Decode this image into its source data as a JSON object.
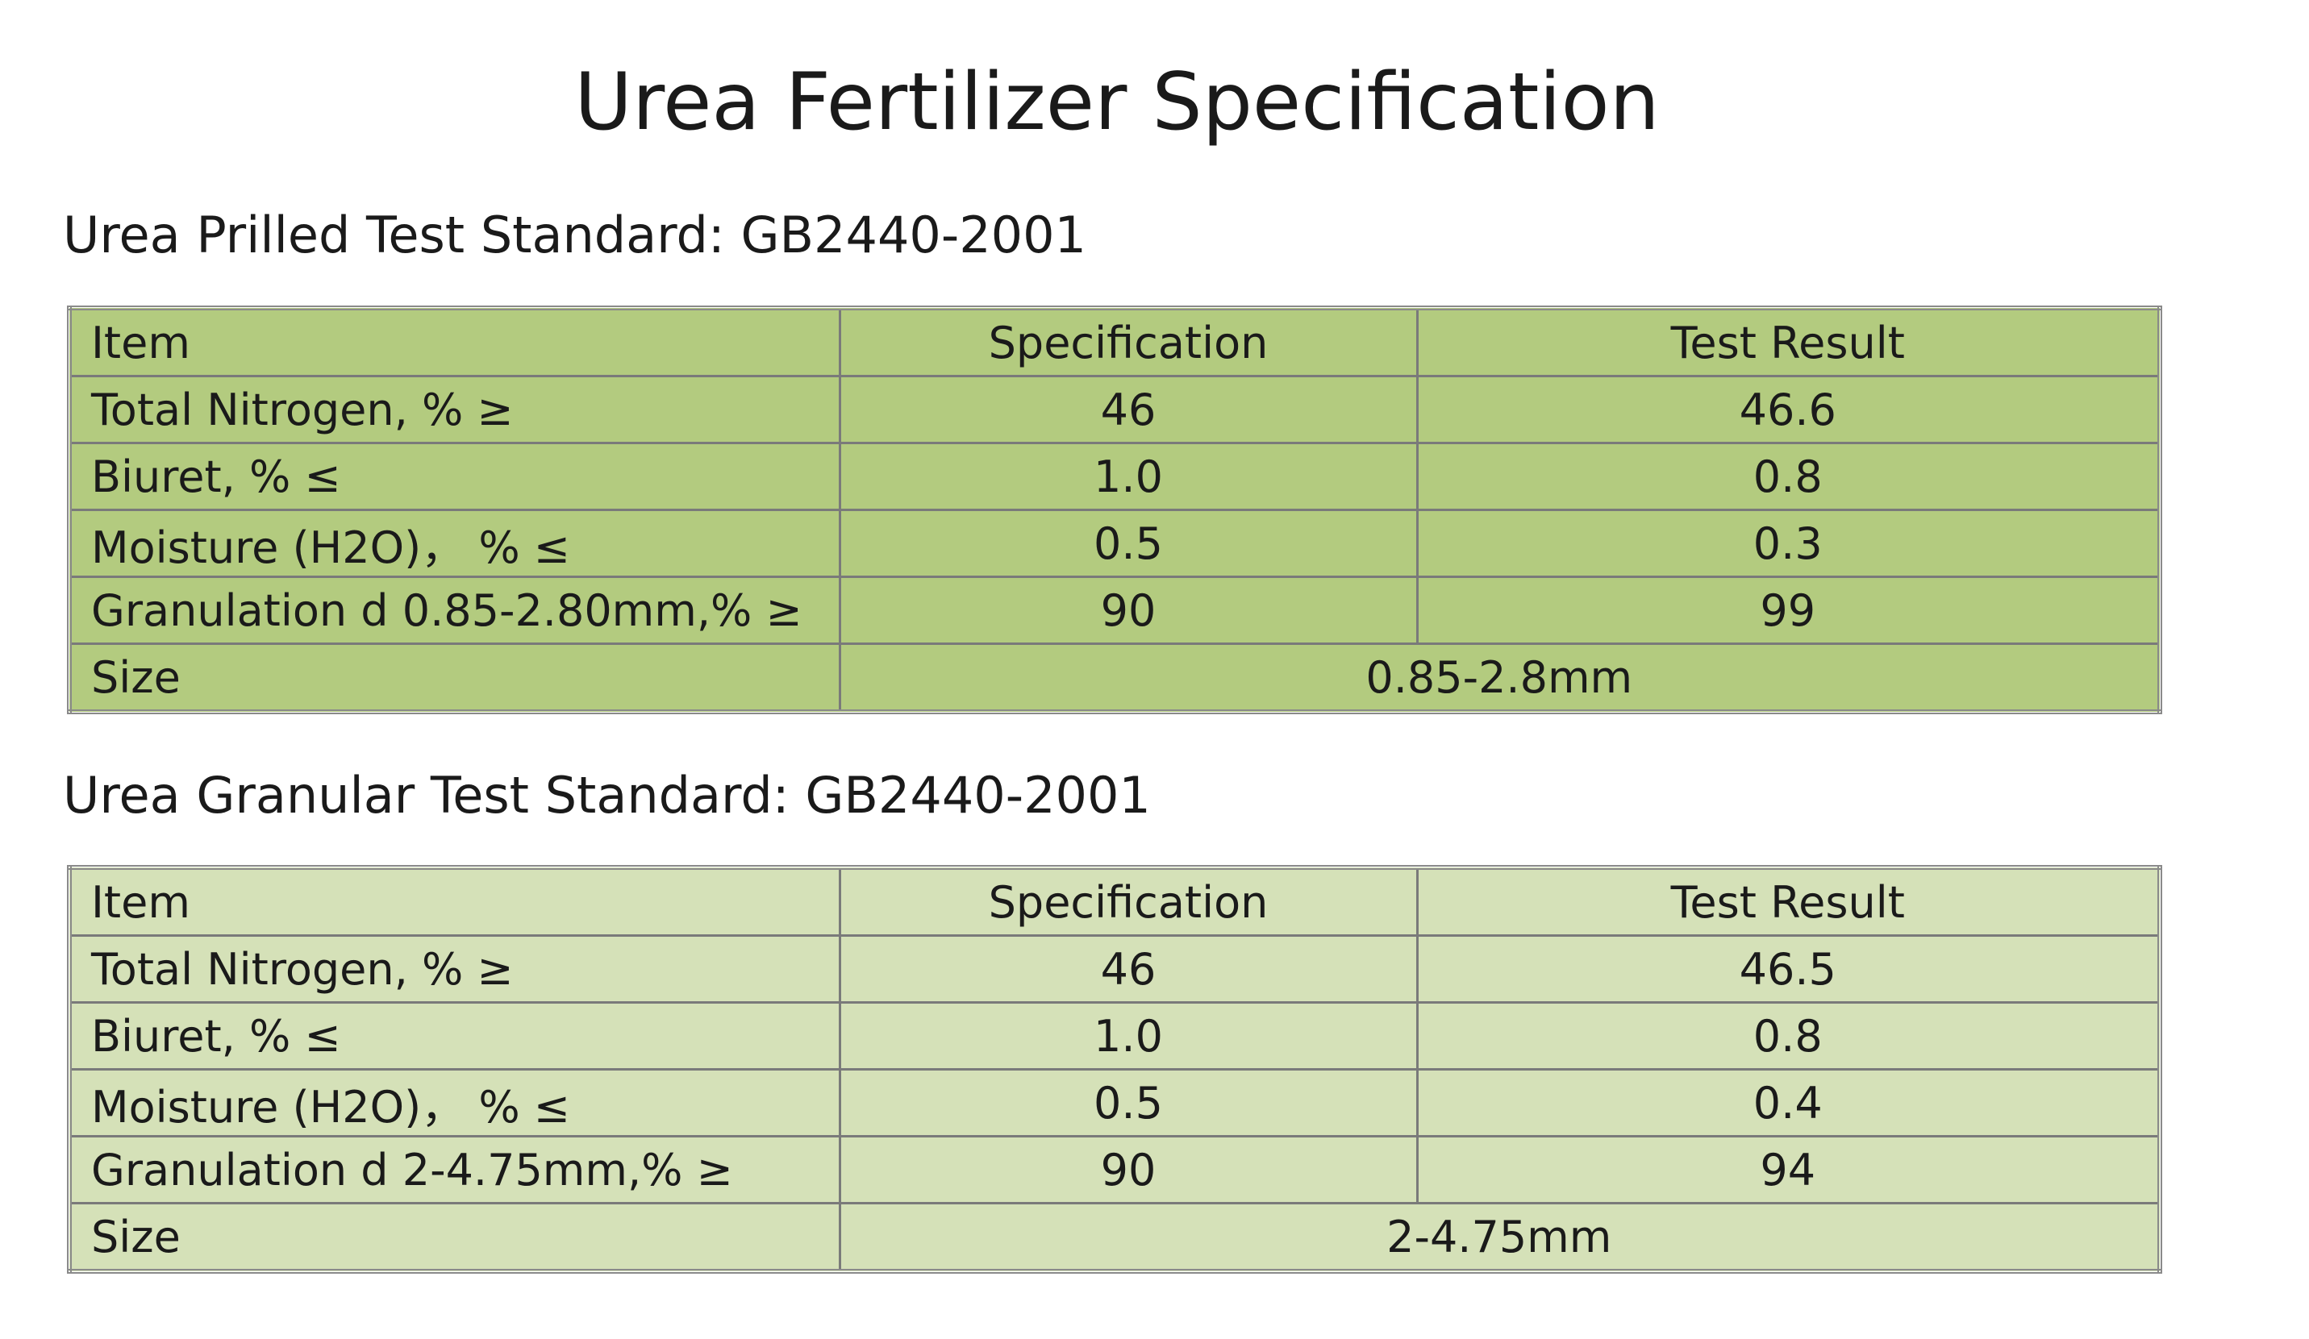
{
  "title": "Urea Fertilizer Specification",
  "tables": [
    {
      "heading": "Urea Prilled Test Standard: GB2440-2001",
      "header": [
        "Item",
        "Specification",
        "Test Result"
      ],
      "rows": [
        [
          "Total Nitrogen, % ≥",
          "46",
          "46.6"
        ],
        [
          "Biuret, % ≤",
          "1.0",
          "0.8"
        ],
        [
          "Moisture (H2O)， % ≤",
          "0.5",
          "0.3"
        ],
        [
          "Granulation d 0.85-2.80mm,% ≥",
          "90",
          "99"
        ]
      ],
      "size_row": [
        "Size",
        "0.85-2.8mm"
      ]
    },
    {
      "heading": "Urea Granular Test Standard: GB2440-2001",
      "header": [
        "Item",
        "Specification",
        "Test Result"
      ],
      "rows": [
        [
          "Total Nitrogen, % ≥",
          "46",
          "46.5"
        ],
        [
          "Biuret, % ≤",
          "1.0",
          "0.8"
        ],
        [
          "Moisture (H2O)， % ≤",
          "0.5",
          "0.4"
        ],
        [
          "Granulation d 2-4.75mm,% ≥",
          "90",
          "94"
        ]
      ],
      "size_row": [
        "Size",
        "2-4.75mm"
      ]
    }
  ]
}
